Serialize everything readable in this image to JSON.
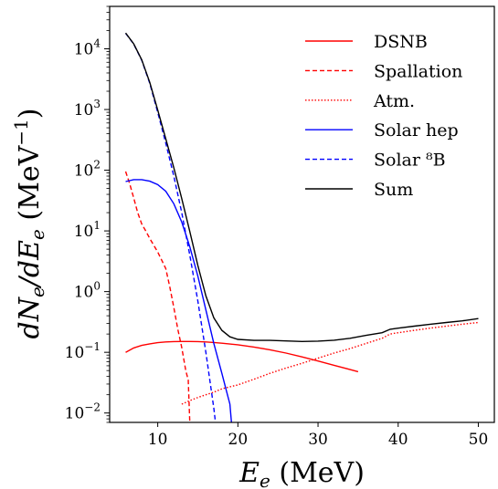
{
  "chart_data": {
    "type": "line",
    "xlabel": "E_e (MeV)",
    "ylabel": "dN_e/dE_e (MeV^-1)",
    "xlim": [
      4,
      52
    ],
    "ylim": [
      0.007,
      50000
    ],
    "yscale": "log",
    "grid": false,
    "legend_position": "top-right",
    "x_ticks": [
      10,
      20,
      30,
      40,
      50
    ],
    "y_ticks": [
      {
        "value": 0.01,
        "base": "10",
        "exp": "−2"
      },
      {
        "value": 0.1,
        "base": "10",
        "exp": "−1"
      },
      {
        "value": 1,
        "base": "10",
        "exp": "0"
      },
      {
        "value": 10,
        "base": "10",
        "exp": "1"
      },
      {
        "value": 100,
        "base": "10",
        "exp": "2"
      },
      {
        "value": 1000,
        "base": "10",
        "exp": "3"
      },
      {
        "value": 10000,
        "base": "10",
        "exp": "4"
      }
    ],
    "series": [
      {
        "name": "DSNB",
        "color": "#ff0000",
        "dash": "solid",
        "x": [
          6,
          7,
          8,
          9,
          10,
          11,
          12,
          13,
          14,
          15,
          16,
          17,
          18,
          19,
          20,
          22,
          24,
          26,
          28,
          30,
          32,
          35
        ],
        "y": [
          0.1,
          0.118,
          0.13,
          0.138,
          0.144,
          0.148,
          0.15,
          0.151,
          0.151,
          0.15,
          0.148,
          0.145,
          0.141,
          0.137,
          0.133,
          0.122,
          0.11,
          0.097,
          0.084,
          0.072,
          0.061,
          0.048
        ]
      },
      {
        "name": "Spallation",
        "color": "#ff0000",
        "dash": "dashed",
        "x": [
          6,
          6.5,
          7,
          7.5,
          8,
          8.5,
          9,
          10,
          11,
          11.5,
          12,
          12.5,
          13,
          13.5,
          13.8,
          14
        ],
        "y": [
          95,
          60,
          35,
          20,
          13,
          10,
          7.5,
          4.5,
          2.4,
          1.2,
          0.55,
          0.24,
          0.12,
          0.05,
          0.035,
          0.007
        ]
      },
      {
        "name": "Atm.",
        "color": "#ff0000",
        "dash": "dotted",
        "x": [
          13,
          14,
          15,
          16,
          17,
          18,
          19,
          20,
          22,
          24,
          26,
          28,
          30,
          32,
          34,
          36,
          38,
          39,
          40,
          42,
          44,
          46,
          48,
          50
        ],
        "y": [
          0.014,
          0.016,
          0.018,
          0.02,
          0.022,
          0.025,
          0.027,
          0.029,
          0.036,
          0.045,
          0.055,
          0.066,
          0.08,
          0.097,
          0.115,
          0.14,
          0.17,
          0.2,
          0.21,
          0.23,
          0.25,
          0.27,
          0.29,
          0.31
        ]
      },
      {
        "name": "Solar hep",
        "color": "#0000ff",
        "dash": "solid",
        "x": [
          6,
          7,
          8,
          9,
          10,
          11,
          12,
          13,
          14,
          15,
          16,
          17,
          18,
          18.5,
          19,
          19.2
        ],
        "y": [
          65,
          70,
          70,
          66,
          58,
          45,
          28,
          14,
          5.5,
          1.8,
          0.5,
          0.14,
          0.045,
          0.025,
          0.014,
          0.007
        ]
      },
      {
        "name": "Solar ⁸B",
        "color": "#0000ff",
        "dash": "dashed",
        "x": [
          6,
          7,
          8,
          9,
          10,
          11,
          12,
          13,
          14,
          15,
          16,
          16.5,
          17,
          17.2
        ],
        "y": [
          18000,
          12000,
          6500,
          2700,
          900,
          280,
          80,
          20,
          4,
          0.7,
          0.1,
          0.035,
          0.012,
          0.007
        ]
      },
      {
        "name": "Sum",
        "color": "#000000",
        "dash": "solid",
        "x": [
          6,
          7,
          8,
          9,
          10,
          11,
          12,
          13,
          14,
          15,
          16,
          17,
          18,
          19,
          20,
          22,
          24,
          26,
          28,
          30,
          32,
          34,
          36,
          38,
          39,
          40,
          42,
          44,
          46,
          48,
          50
        ],
        "y": [
          18200,
          12100,
          6600,
          2800,
          980,
          330,
          110,
          34,
          9.8,
          2.7,
          0.85,
          0.37,
          0.23,
          0.18,
          0.163,
          0.157,
          0.157,
          0.154,
          0.151,
          0.153,
          0.158,
          0.17,
          0.19,
          0.21,
          0.24,
          0.25,
          0.27,
          0.29,
          0.31,
          0.33,
          0.36
        ]
      }
    ]
  }
}
